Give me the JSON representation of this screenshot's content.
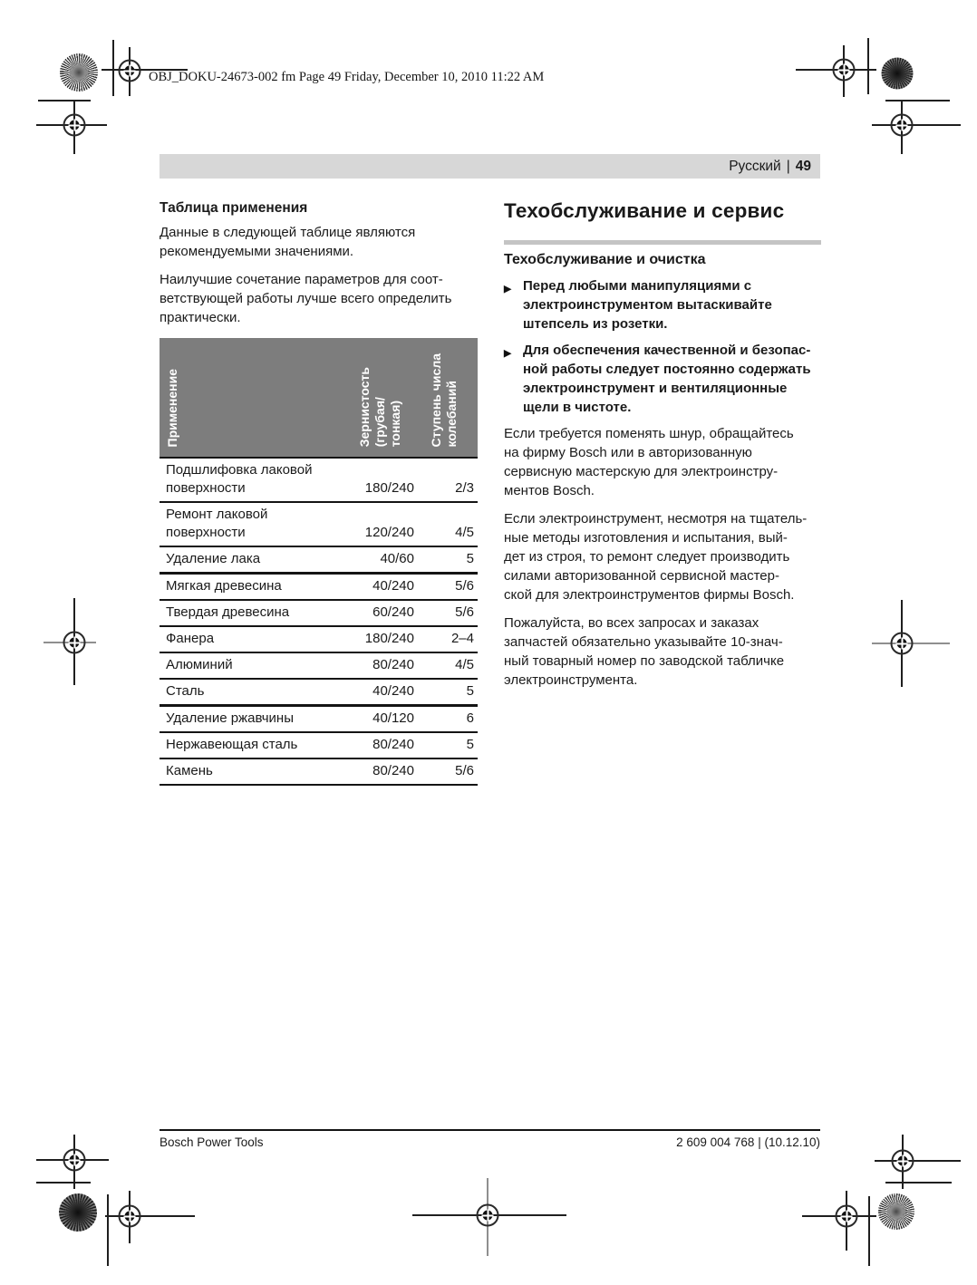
{
  "print_header": {
    "text": "OBJ_DOKU-24673-002 fm  Page 49  Friday, December 10, 2010  11:22 AM"
  },
  "page_bar": {
    "language": "Русский",
    "separator": "|",
    "page_number": "49"
  },
  "left_column": {
    "heading": "Таблица применения",
    "para1": "Данные в следующей таблице являются\nрекомендуемыми значениями.",
    "para2": "Наилучшие сочетание параметров для соот-\nветствующей работы лучше всего определить\nпрактически.",
    "table": {
      "columns": [
        "Применение",
        "Зернистость\n(грубая/\nтонкая)",
        "Ступень числа\nколебаний"
      ],
      "rows": [
        {
          "application": "Подшлифовка лаковой\nповерхности",
          "grit": "180/240",
          "stage": "2/3",
          "thick": false
        },
        {
          "application": "Ремонт лаковой\nповерхности",
          "grit": "120/240",
          "stage": "4/5",
          "thick": false
        },
        {
          "application": "Удаление лака",
          "grit": "40/60",
          "stage": "5",
          "thick": false
        },
        {
          "application": "Мягкая древесина",
          "grit": "40/240",
          "stage": "5/6",
          "thick": true
        },
        {
          "application": "Твердая древесина",
          "grit": "60/240",
          "stage": "5/6",
          "thick": false
        },
        {
          "application": "Фанера",
          "grit": "180/240",
          "stage": "2–4",
          "thick": false
        },
        {
          "application": "Алюминий",
          "grit": "80/240",
          "stage": "4/5",
          "thick": false
        },
        {
          "application": "Сталь",
          "grit": "40/240",
          "stage": "5",
          "thick": false
        },
        {
          "application": "Удаление ржавчины",
          "grit": "40/120",
          "stage": "6",
          "thick": true
        },
        {
          "application": "Нержавеющая сталь",
          "grit": "80/240",
          "stage": "5",
          "thick": false
        },
        {
          "application": "Камень",
          "grit": "80/240",
          "stage": "5/6",
          "thick": false
        }
      ]
    }
  },
  "right_column": {
    "heading": "Техобслуживание и сервис",
    "subheading": "Техобслуживание и очистка",
    "bullet_marker": "▶",
    "bullets": [
      "Перед любыми манипуляциями с\nэлектроинструментом вытаскивайте\nштепсель из розетки.",
      "Для обеспечения качественной и безопас-\nной работы следует постоянно содержать\nэлектроинструмент и вентиляционные\nщели в чистоте."
    ],
    "paragraphs": [
      "Если требуется поменять шнур, обращайтесь\nна фирму Bosch или в авторизованную\nсервисную мастерскую для электроинстру-\nментов Bosch.",
      "Если электроинструмент, несмотря на тщатель-\nные методы изготовления и испытания, вый-\nдет из строя, то ремонт следует производить\nсилами авторизованной сервисной мастер-\nской для электроинструментов фирмы Bosch.",
      "Пожалуйста, во всех запросах и заказах\nзапчастей обязательно указывайте 10-знач-\nный товарный номер по заводской табличке\nэлектроинструмента."
    ]
  },
  "footer": {
    "left": "Bosch Power Tools",
    "right": "2 609 004 768 | (10.12.10)"
  },
  "colors": {
    "table_header_bg": "#7d7d7d",
    "page_bar_bg": "#d7d7d7",
    "rule_gray": "#c4c4c4"
  }
}
